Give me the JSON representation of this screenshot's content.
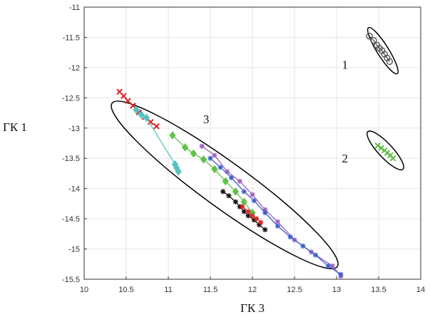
{
  "chart_data": {
    "type": "scatter",
    "xlabel": "ГК 3",
    "ylabel": "ГК 1",
    "xlim": [
      10,
      14
    ],
    "ylim": [
      -15.5,
      -11
    ],
    "x_ticks": [
      "10",
      "10.5",
      "11",
      "11.5",
      "12",
      "12.5",
      "13",
      "13.5",
      "14"
    ],
    "y_ticks": [
      "-11",
      "-11.5",
      "-12",
      "-12.5",
      "-13",
      "-13.5",
      "-14",
      "-14.5",
      "-15",
      "-15.5"
    ],
    "grid": true,
    "cluster_labels": [
      {
        "text": "1",
        "x": 13.1,
        "y": -11.95
      },
      {
        "text": "2",
        "x": 13.1,
        "y": -13.5
      },
      {
        "text": "3",
        "x": 11.45,
        "y": -12.85
      }
    ],
    "ellipses": [
      {
        "cx": 13.55,
        "cy": -11.72,
        "rx": 0.38,
        "ry": 0.08,
        "angle_deg": 58
      },
      {
        "cx": 13.58,
        "cy": -13.37,
        "rx": 0.36,
        "ry": 0.1,
        "angle_deg": 47
      },
      {
        "cx": 11.67,
        "cy": -13.94,
        "rx": 1.95,
        "ry": 0.32,
        "angle_deg": 36
      }
    ],
    "series": [
      {
        "color": "#555555",
        "marker": "o",
        "x": [
          13.39,
          13.44,
          13.48,
          13.51,
          13.54,
          13.57,
          13.6,
          13.63
        ],
        "y": [
          -11.48,
          -11.55,
          -11.63,
          -11.68,
          -11.72,
          -11.78,
          -11.84,
          -11.9
        ]
      },
      {
        "color": "#5fc24a",
        "marker": "x",
        "x": [
          13.49,
          13.53,
          13.57,
          13.6,
          13.64,
          13.67
        ],
        "y": [
          -13.29,
          -13.33,
          -13.37,
          -13.41,
          -13.45,
          -13.5
        ]
      },
      {
        "color": "#e02020",
        "marker": "x",
        "x": [
          10.42,
          10.47,
          10.52,
          10.58,
          10.65,
          10.72,
          10.79,
          10.86
        ],
        "y": [
          -12.4,
          -12.47,
          -12.55,
          -12.63,
          -12.74,
          -12.82,
          -12.9,
          -12.97
        ]
      },
      {
        "color": "#55c2c2",
        "marker": "d",
        "x": [
          10.62,
          10.68,
          10.74,
          11.08,
          11.1,
          11.12
        ],
        "y": [
          -12.7,
          -12.78,
          -12.83,
          -13.6,
          -13.66,
          -13.72
        ]
      },
      {
        "color": "#5fc24a",
        "marker": "d",
        "x": [
          11.05,
          11.2,
          11.3,
          11.42,
          11.55,
          11.68,
          11.8,
          11.9,
          12.0
        ],
        "y": [
          -13.12,
          -13.32,
          -13.42,
          -13.52,
          -13.68,
          -13.88,
          -14.05,
          -14.22,
          -14.4
        ]
      },
      {
        "color": "#a060c0",
        "marker": "*",
        "x": [
          11.4,
          11.55,
          11.7,
          11.85,
          12.0,
          12.15,
          12.3,
          12.5,
          12.7,
          12.95,
          13.05
        ],
        "y": [
          -13.3,
          -13.45,
          -13.72,
          -13.88,
          -14.1,
          -14.35,
          -14.55,
          -14.85,
          -15.05,
          -15.28,
          -15.45
        ]
      },
      {
        "color": "#3a5fc9",
        "marker": "*",
        "x": [
          11.5,
          11.62,
          11.75,
          11.9,
          12.02,
          12.15,
          12.3,
          12.45,
          12.6,
          12.75,
          12.9,
          13.05
        ],
        "y": [
          -13.5,
          -13.65,
          -13.82,
          -14.05,
          -14.2,
          -14.4,
          -14.62,
          -14.8,
          -14.95,
          -15.1,
          -15.28,
          -15.42
        ]
      },
      {
        "color": "#111111",
        "marker": "*",
        "x": [
          11.65,
          11.72,
          11.8,
          11.85,
          11.9,
          11.95,
          12.02,
          12.08,
          12.15
        ],
        "y": [
          -14.05,
          -14.12,
          -14.22,
          -14.3,
          -14.38,
          -14.45,
          -14.52,
          -14.6,
          -14.68
        ]
      },
      {
        "color": "#e02020",
        "marker": "*",
        "x": [
          11.88,
          11.95,
          12.0,
          12.05,
          12.1
        ],
        "y": [
          -14.3,
          -14.38,
          -14.45,
          -14.5,
          -14.56
        ]
      }
    ]
  }
}
